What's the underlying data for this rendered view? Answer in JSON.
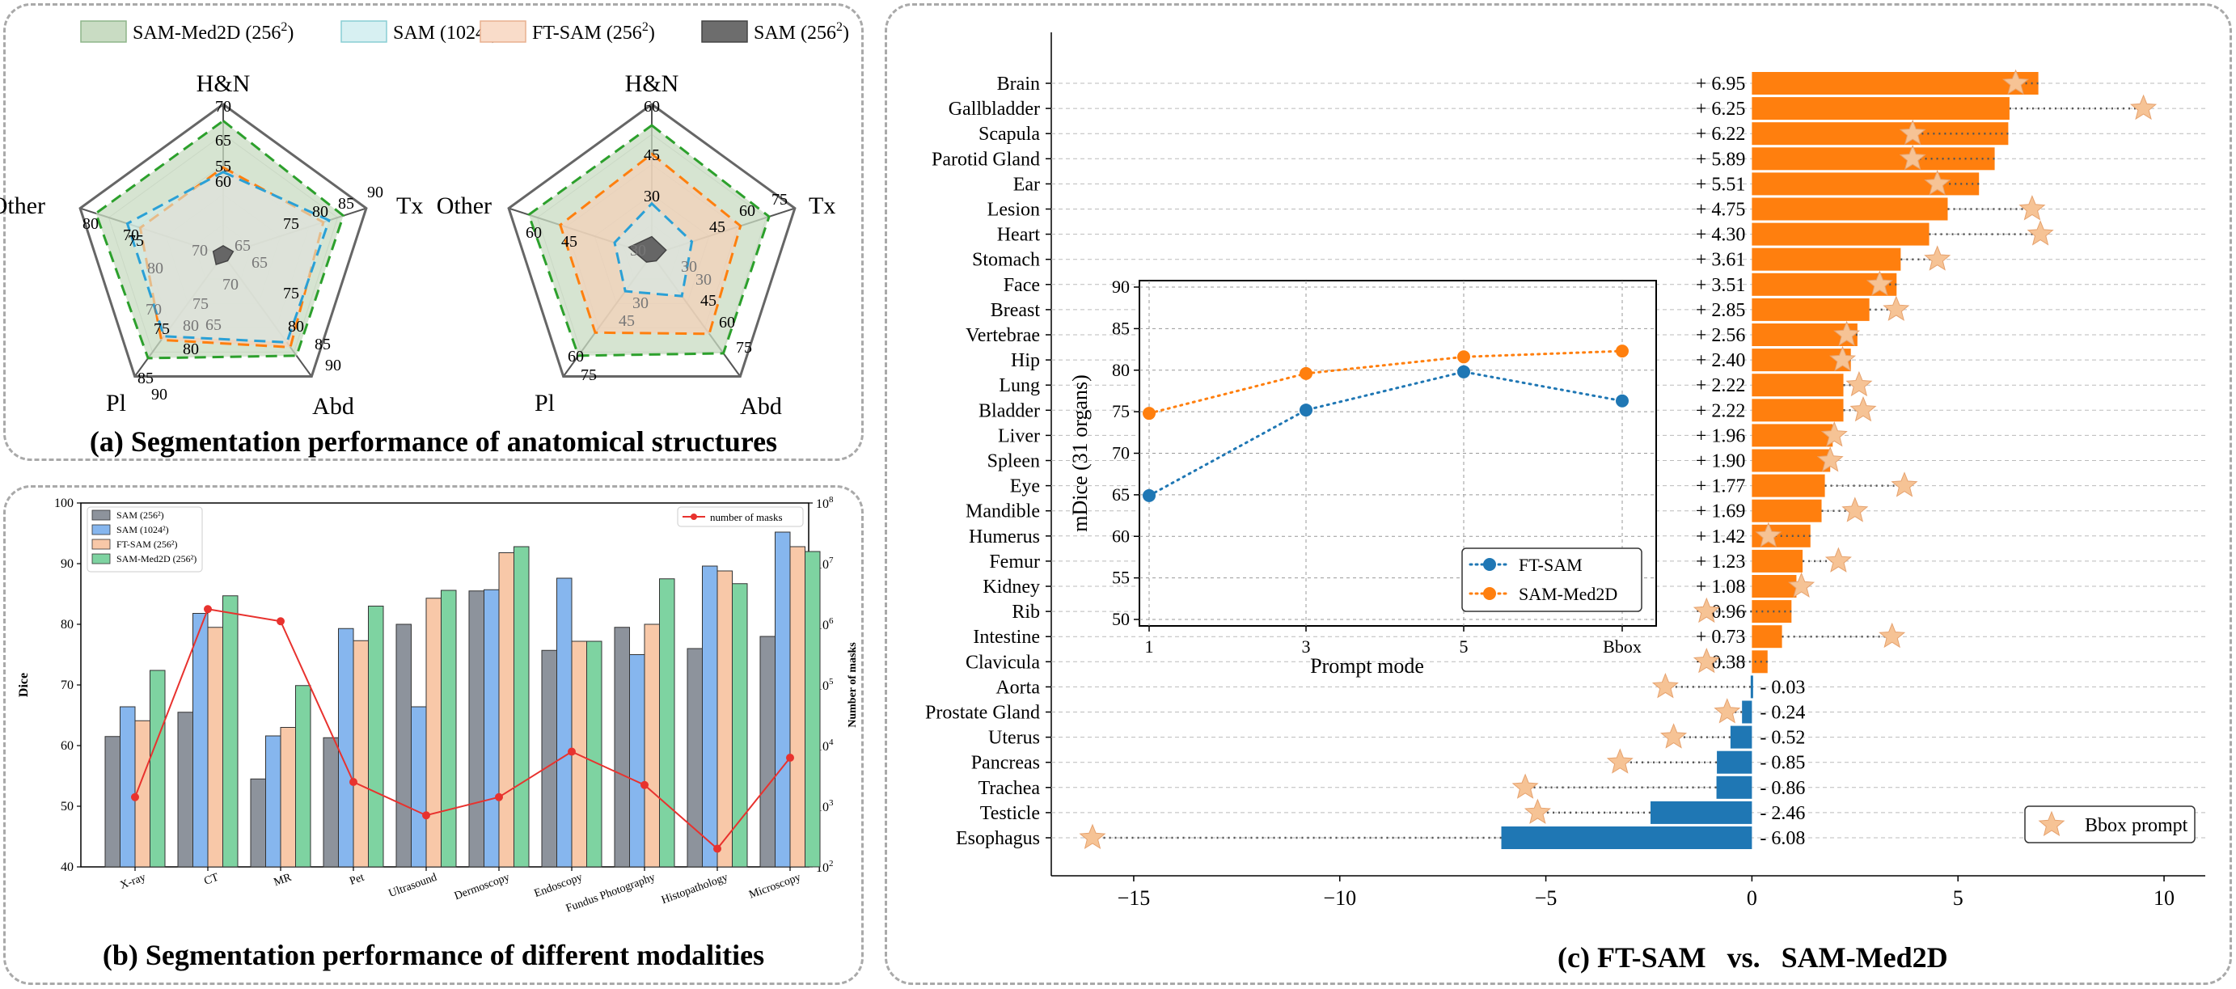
{
  "panels": {
    "a": {
      "caption": "(a) Segmentation performance of anatomical structures",
      "legend": [
        {
          "label": "SAM-Med2D (256",
          "sup": "2",
          "tail": ")",
          "fill": "#c9dcc3",
          "stroke": "#8eb58a"
        },
        {
          "label": "SAM (1024",
          "sup": "2",
          "tail": ")",
          "fill": "#d7f0f2",
          "stroke": "#89cdd4"
        },
        {
          "label": "FT-SAM (256",
          "sup": "2",
          "tail": ")",
          "fill": "#f9dcc9",
          "stroke": "#e8b08f"
        },
        {
          "label": "SAM (256",
          "sup": "2",
          "tail": ")",
          "fill": "#6d6d6d",
          "stroke": "#444444"
        }
      ]
    },
    "b": {
      "caption": "(b) Segmentation performance of different modalities"
    },
    "c": {
      "caption_left": "(c) FT-SAM",
      "caption_vs": "vs.",
      "caption_right": "SAM-Med2D"
    }
  },
  "chart_data": [
    {
      "type": "radar",
      "id": "radar1",
      "axes": [
        "H&N",
        "Tx",
        "Abd",
        "Pl",
        "Other"
      ],
      "tick_labels": {
        "H&N": [
          "55",
          "60",
          "65",
          "70"
        ],
        "Tx": [
          "75",
          "80",
          "85",
          "90"
        ],
        "Abd": [
          "75",
          "80",
          "85",
          "90"
        ],
        "Pl": [
          "75",
          "80",
          "85",
          "90"
        ],
        "Other": [
          "70",
          "75",
          "80"
        ]
      },
      "inner_ticks": [
        "70",
        "65",
        "70",
        "65",
        "70",
        "75",
        "65",
        "80",
        "80"
      ],
      "series": [
        {
          "name": "SAM-Med2D (256²)",
          "values_norm": [
            0.89,
            0.84,
            0.83,
            0.85,
            0.89
          ],
          "style": "filled-dashed-green"
        },
        {
          "name": "SAM (1024²)",
          "values_norm": [
            0.55,
            0.74,
            0.72,
            0.67,
            0.67
          ],
          "style": "dashed-blue"
        },
        {
          "name": "FT-SAM (256²)",
          "values_norm": [
            0.58,
            0.7,
            0.76,
            0.7,
            0.58
          ],
          "style": "dashed-orange"
        },
        {
          "name": "SAM (256²)",
          "values_norm": [
            0.06,
            0.07,
            0.05,
            0.08,
            0.07
          ],
          "style": "filled-grey"
        }
      ]
    },
    {
      "type": "radar",
      "id": "radar2",
      "axes": [
        "H&N",
        "Tx",
        "Abd",
        "Pl",
        "Other"
      ],
      "tick_labels": {
        "H&N": [
          "30",
          "45",
          "60"
        ],
        "Tx": [
          "45",
          "60",
          "75"
        ],
        "Abd": [
          "45",
          "60",
          "75"
        ],
        "Pl": [
          "60",
          "75"
        ],
        "Other": [
          "45",
          "60"
        ]
      },
      "inner_ticks": [
        "30",
        "30",
        "30",
        "30",
        "45"
      ],
      "series": [
        {
          "name": "SAM-Med2D (256²)",
          "values_norm": [
            0.86,
            0.82,
            0.81,
            0.83,
            0.86
          ],
          "style": "filled-dashed-green"
        },
        {
          "name": "SAM (1024²)",
          "values_norm": [
            0.34,
            0.28,
            0.34,
            0.3,
            0.26
          ],
          "style": "dashed-blue"
        },
        {
          "name": "FT-SAM (256²)",
          "values_norm": [
            0.67,
            0.62,
            0.65,
            0.64,
            0.64
          ],
          "style": "dashed-orange"
        },
        {
          "name": "SAM (256²)",
          "values_norm": [
            0.12,
            0.1,
            0.05,
            0.06,
            0.16
          ],
          "style": "filled-grey"
        }
      ]
    },
    {
      "type": "bar",
      "id": "modalities",
      "ylabel": "Dice",
      "y2label": "Number of masks",
      "ylim": [
        40,
        100
      ],
      "yticks": [
        "40",
        "50",
        "60",
        "70",
        "80",
        "90",
        "100"
      ],
      "y2_log_range": [
        2,
        8
      ],
      "y2ticks": [
        {
          "base": "10",
          "exp": "2"
        },
        {
          "base": "10",
          "exp": "3"
        },
        {
          "base": "10",
          "exp": "4"
        },
        {
          "base": "10",
          "exp": "5"
        },
        {
          "base": "10",
          "exp": "6"
        },
        {
          "base": "10",
          "exp": "7"
        },
        {
          "base": "10",
          "exp": "8"
        }
      ],
      "categories": [
        "X-ray",
        "CT",
        "MR",
        "Pet",
        "Ultrasound",
        "Dermoscopy",
        "Endoscopy",
        "Fundus Photography",
        "Histopathology",
        "Microscopy"
      ],
      "series": [
        {
          "name": "SAM (256²)",
          "color": "#8d939c",
          "values": [
            61.5,
            65.5,
            54.5,
            61.3,
            80,
            85.5,
            75.7,
            79.5,
            76,
            78
          ]
        },
        {
          "name": "SAM (1024²)",
          "color": "#86b6ee",
          "values": [
            66.4,
            81.8,
            61.6,
            79.3,
            66.4,
            85.7,
            87.6,
            75,
            89.6,
            95.2
          ]
        },
        {
          "name": "FT-SAM (256²)",
          "color": "#f8c8a8",
          "values": [
            64.1,
            79.5,
            63,
            77.3,
            84.3,
            91.8,
            77.2,
            80,
            88.8,
            92.8
          ]
        },
        {
          "name": "SAM-Med2D (256²)",
          "color": "#7ed3a1",
          "values": [
            72.4,
            84.7,
            69.9,
            83,
            85.6,
            92.8,
            77.2,
            87.5,
            86.7,
            92
          ]
        }
      ],
      "line": {
        "name": "number of masks",
        "color": "#e8322e",
        "log10_values": [
          3.15,
          6.25,
          6.05,
          3.4,
          2.85,
          3.15,
          3.9,
          3.35,
          2.3,
          3.8
        ]
      },
      "legend_labels": [
        "SAM (256²)",
        "SAM (1024²)",
        "FT-SAM (256²)",
        "SAM-Med2D (256²)"
      ]
    },
    {
      "type": "bar",
      "orientation": "horizontal",
      "id": "diff",
      "xlim": [
        -17,
        11
      ],
      "xticks": [
        "−15",
        "−10",
        "−5",
        "0",
        "5",
        "10"
      ],
      "xtick_values": [
        -15,
        -10,
        -5,
        0,
        5,
        10
      ],
      "legend": "Bbox prompt",
      "categories": [
        "Brain",
        "Gallbladder",
        "Scapula",
        "Parotid Gland",
        "Ear",
        "Lesion",
        "Heart",
        "Stomach",
        "Face",
        "Breast",
        "Vertebrae",
        "Hip",
        "Lung",
        "Bladder",
        "Liver",
        "Spleen",
        "Eye",
        "Mandible",
        "Humerus",
        "Femur",
        "Kidney",
        "Rib",
        "Intestine",
        "Clavicula",
        "Aorta",
        "Prostate Gland",
        "Uterus",
        "Pancreas",
        "Trachea",
        "Testicle",
        "Esophagus"
      ],
      "values": [
        6.95,
        6.25,
        6.22,
        5.89,
        5.51,
        4.75,
        4.3,
        3.61,
        3.51,
        2.85,
        2.56,
        2.4,
        2.22,
        2.22,
        1.96,
        1.9,
        1.77,
        1.69,
        1.42,
        1.23,
        1.08,
        0.96,
        0.73,
        0.38,
        -0.03,
        -0.24,
        -0.52,
        -0.85,
        -0.86,
        -2.46,
        -6.08
      ],
      "value_labels": [
        "+ 6.95",
        "+ 6.25",
        "+ 6.22",
        "+ 5.89",
        "+ 5.51",
        "+ 4.75",
        "+ 4.30",
        "+ 3.61",
        "+ 3.51",
        "+ 2.85",
        "+ 2.56",
        "+ 2.40",
        "+ 2.22",
        "+ 2.22",
        "+ 1.96",
        "+ 1.90",
        "+ 1.77",
        "+ 1.69",
        "+ 1.42",
        "+ 1.23",
        "+ 1.08",
        "+ 0.96",
        "+ 0.73",
        "+ 0.38",
        "- 0.03",
        "- 0.24",
        "- 0.52",
        "- 0.85",
        "- 0.86",
        "- 2.46",
        "- 6.08"
      ],
      "bbox_values": [
        6.4,
        9.5,
        3.9,
        3.9,
        4.5,
        6.8,
        7.0,
        4.5,
        3.1,
        3.5,
        2.3,
        2.2,
        2.6,
        2.7,
        2.0,
        1.9,
        3.7,
        2.5,
        0.4,
        2.1,
        1.2,
        -1.1,
        3.4,
        -1.1,
        -2.1,
        -0.6,
        -1.9,
        -3.2,
        -5.5,
        -5.2,
        -16.0
      ],
      "colors": {
        "positive": "#ff7f0e",
        "negative": "#1f77b4",
        "star": "#f6c395"
      }
    },
    {
      "type": "line",
      "id": "prompt-mode",
      "ylabel": "mDice (31 organs)",
      "xlabel": "Prompt mode",
      "categories": [
        "1",
        "3",
        "5",
        "Bbox"
      ],
      "ylim": [
        50,
        90
      ],
      "yticks": [
        "50",
        "55",
        "60",
        "65",
        "70",
        "75",
        "80",
        "85",
        "90"
      ],
      "series": [
        {
          "name": "FT-SAM",
          "color": "#1f77b4",
          "values": [
            64.9,
            75.2,
            79.8,
            76.3
          ]
        },
        {
          "name": "SAM-Med2D",
          "color": "#ff7f0e",
          "values": [
            74.8,
            79.6,
            81.6,
            82.3
          ]
        }
      ]
    }
  ]
}
